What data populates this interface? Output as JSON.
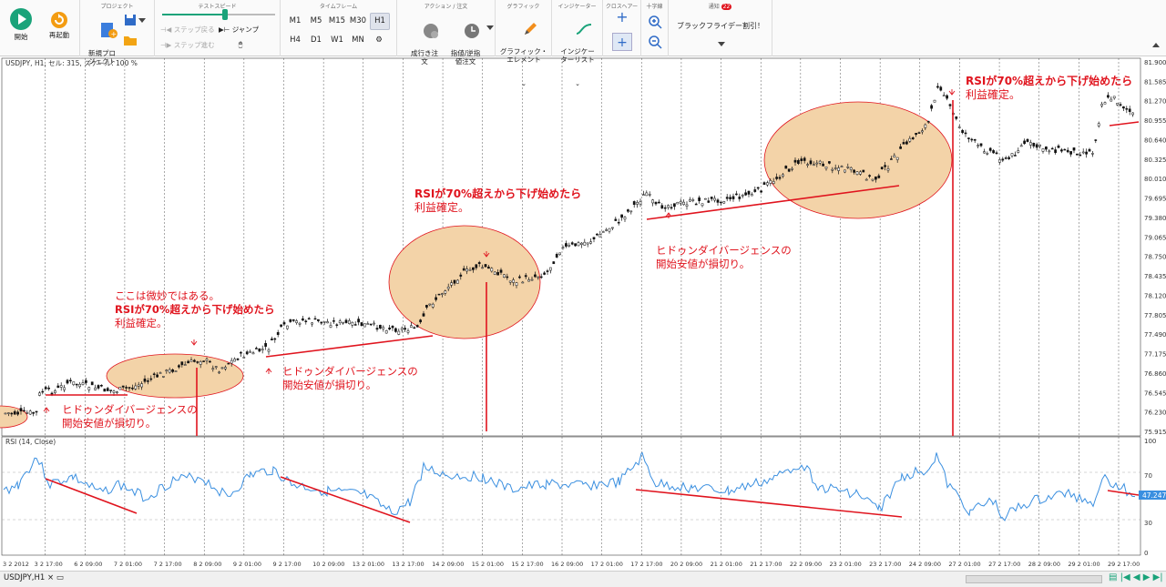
{
  "toolbar": {
    "start_label": "開始",
    "restart_label": "再起動",
    "project_caption": "プロジェクト",
    "new_project_label": "新規プロ\nジェクト",
    "test_speed_caption": "テストスピード",
    "step_back_label": "ステップ戻る",
    "step_forward_label": "ステップ進む",
    "jump_label": "ジャンプ",
    "timeframe_caption": "タイムフレーム",
    "timeframes_row1": [
      "M1",
      "M5",
      "M15",
      "M30",
      "H1"
    ],
    "timeframes_row2": [
      "H4",
      "D1",
      "W1",
      "MN"
    ],
    "active_timeframe": "H1",
    "action_caption": "アクション / 注文",
    "market_order_label": "成行き注\n文",
    "limit_order_label": "指値/逆指\n値注文",
    "graphic_caption": "グラフィック",
    "graphic_element_label": "グラフィック・\nエレメント",
    "indicator_caption": "インジケーター",
    "indicator_list_label": "インジケー\nターリスト",
    "crosshair_caption": "クロスヘアー",
    "cross_caption": "十字線",
    "notification_caption": "通知",
    "notification_count": "22",
    "notification_text": "ブラックフライデー割引！"
  },
  "chart": {
    "title": "USDJPY, H1, セル: 315, スケール: 100 %",
    "rsi_title": "RSI (14, Close)",
    "price_ticks": [
      "81.900",
      "81.585",
      "81.270",
      "80.955",
      "80.640",
      "80.325",
      "80.010",
      "79.695",
      "79.380",
      "79.065",
      "78.750",
      "78.435",
      "78.120",
      "77.805",
      "77.490",
      "77.175",
      "76.860",
      "76.545",
      "76.230",
      "75.915"
    ],
    "rsi_ticks": [
      "100",
      "70",
      "30",
      "0"
    ],
    "rsi_last": "47.2471",
    "time_ticks": [
      "3 2 2012",
      "3 2 17:00",
      "6 2 09:00",
      "7 2 01:00",
      "7 2 17:00",
      "8 2 09:00",
      "9 2 01:00",
      "9 2 17:00",
      "10 2 09:00",
      "13 2 01:00",
      "13 2 17:00",
      "14 2 09:00",
      "15 2 01:00",
      "15 2 17:00",
      "16 2 09:00",
      "17 2 01:00",
      "17 2 17:00",
      "20 2 09:00",
      "21 2 01:00",
      "21 2 17:00",
      "22 2 09:00",
      "23 2 01:00",
      "23 2 17:00",
      "24 2 09:00",
      "27 2 01:00",
      "27 2 17:00",
      "28 2 09:00",
      "29 2 01:00",
      "29 2 17:00"
    ]
  },
  "annotations": {
    "a1": [
      "ここは微妙ではある。",
      "RSIが70%超えから下げ始めたら",
      "利益確定。"
    ],
    "a2": [
      "ヒドゥンダイバージェンスの",
      "開始安値が損切り。"
    ],
    "a3": [
      "ヒドゥンダイバージェンスの",
      "開始安値が損切り。"
    ],
    "a4": [
      "RSIが70%超えから下げ始めたら",
      "利益確定。"
    ],
    "a5": [
      "ヒドゥンダイバージェンスの",
      "開始安値が損切り。"
    ],
    "a6": [
      "RSIが70%超えから下げ始めたら",
      "利益確定。"
    ]
  },
  "statusbar": {
    "tab_label": "USDJPY,H1"
  },
  "colors": {
    "candle": "#111111",
    "rsi_line": "#3a8fe0",
    "annotation": "#e0141e",
    "ellipse_fill": "#f3d3a8",
    "accent_green": "#1aa37a"
  }
}
